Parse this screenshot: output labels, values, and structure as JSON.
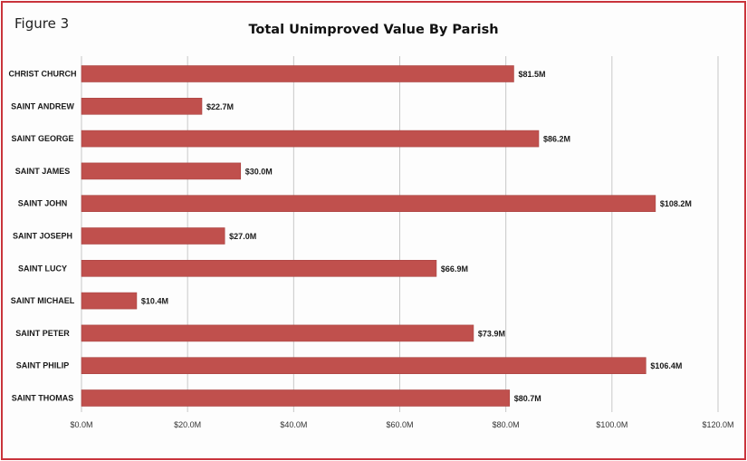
{
  "figure_label": "Figure 3",
  "colors": {
    "bar": "#c0504d",
    "bar_edge": "#a94441",
    "border": "#c9343b",
    "grid": "#c8c8c8"
  },
  "chart_data": {
    "type": "bar",
    "orientation": "horizontal",
    "title": "Total Unimproved Value By Parish",
    "xlabel": "",
    "ylabel": "",
    "categories": [
      "CHRIST CHURCH",
      "SAINT ANDREW",
      "SAINT GEORGE",
      "SAINT JAMES",
      "SAINT JOHN",
      "SAINT JOSEPH",
      "SAINT LUCY",
      "SAINT MICHAEL",
      "SAINT PETER",
      "SAINT PHILIP",
      "SAINT THOMAS"
    ],
    "values": [
      81.5,
      22.7,
      86.2,
      30.0,
      108.2,
      27.0,
      66.9,
      10.4,
      73.9,
      106.4,
      80.7
    ],
    "data_labels": [
      "$81.5M",
      "$22.7M",
      "$86.2M",
      "$30.0M",
      "$108.2M",
      "$27.0M",
      "$66.9M",
      "$10.4M",
      "$73.9M",
      "$106.4M",
      "$80.7M"
    ],
    "xlim": [
      0,
      120
    ],
    "xticks": [
      0,
      20,
      40,
      60,
      80,
      100,
      120
    ],
    "xtick_labels": [
      "$0.0M",
      "$20.0M",
      "$40.0M",
      "$60.0M",
      "$80.0M",
      "$100.0M",
      "$120.0M"
    ],
    "grid": true,
    "legend": "none"
  }
}
